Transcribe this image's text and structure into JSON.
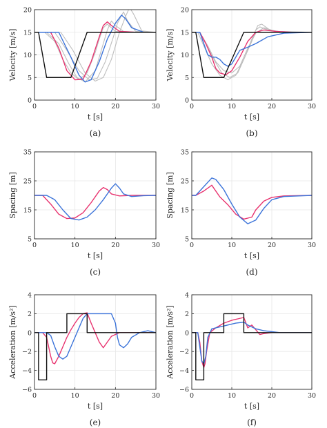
{
  "colors": {
    "reference": "#111111",
    "magenta": "#e8336f",
    "blue": "#3b73d9",
    "gray": "#bdbdbd",
    "grid": "#e6e6e6",
    "axis": "#262626"
  },
  "chart_data": [
    {
      "id": "a",
      "type": "line",
      "caption": "(a)",
      "xlabel": "t [s]",
      "ylabel": "Velocity [m/s]",
      "xlim": [
        0,
        30
      ],
      "ylim": [
        0,
        20
      ],
      "xticks": [
        "0",
        "10",
        "20",
        "30"
      ],
      "yticks": [
        "0",
        "5",
        "10",
        "15",
        "20"
      ],
      "grid": true,
      "series": [
        {
          "style": "gray",
          "x": [
            0,
            2.5,
            5,
            7,
            9,
            11,
            13,
            15,
            16,
            17,
            18,
            20,
            25,
            30
          ],
          "y": [
            15,
            15,
            13,
            9,
            6,
            4.5,
            6,
            10.5,
            13.5,
            16,
            16.8,
            15.2,
            15,
            15
          ]
        },
        {
          "style": "gray",
          "x": [
            0,
            3,
            6,
            8.5,
            10.5,
            12.5,
            15,
            17,
            18,
            19,
            20,
            22,
            26,
            30
          ],
          "y": [
            15,
            15,
            12.5,
            8,
            5,
            4,
            6.5,
            12.5,
            15.5,
            17.5,
            16.5,
            15.2,
            15,
            15
          ]
        },
        {
          "style": "gray",
          "x": [
            0,
            5,
            8,
            11,
            13.5,
            15.5,
            17.5,
            19.5,
            20.5,
            22,
            23,
            25,
            30
          ],
          "y": [
            15,
            15,
            11,
            6.5,
            4.5,
            4.8,
            8.5,
            14,
            17,
            19.5,
            17.5,
            15.2,
            15
          ]
        },
        {
          "style": "gray",
          "x": [
            0,
            6.5,
            9.5,
            12.5,
            15,
            17,
            19,
            21,
            22.5,
            23.5,
            24.5,
            26.5,
            30
          ],
          "y": [
            15,
            15,
            11,
            6,
            4.2,
            5,
            9,
            15,
            18.5,
            20.5,
            19,
            15.3,
            15
          ]
        },
        {
          "style": "magenta",
          "x": [
            0,
            4,
            6,
            8,
            10,
            12,
            14,
            16,
            17,
            18,
            19,
            21,
            25,
            30
          ],
          "y": [
            15,
            15,
            11.5,
            6.5,
            4.5,
            4.6,
            8.5,
            14,
            16.5,
            17.3,
            16.5,
            15.2,
            15,
            15
          ]
        },
        {
          "style": "blue",
          "x": [
            0,
            6,
            9,
            11,
            12.5,
            14,
            16,
            18,
            20,
            21.5,
            22.5,
            24,
            27,
            30
          ],
          "y": [
            15,
            15,
            9.5,
            5.5,
            4,
            4.5,
            8.5,
            13.5,
            17,
            18.8,
            18,
            16,
            15,
            15
          ]
        },
        {
          "style": "reference",
          "x": [
            0,
            1,
            3,
            9,
            13,
            30
          ],
          "y": [
            15,
            15,
            5,
            5,
            15,
            15
          ]
        }
      ]
    },
    {
      "id": "b",
      "type": "line",
      "caption": "(b)",
      "xlabel": "t [s]",
      "ylabel": "Velocity [m/s]",
      "xlim": [
        0,
        30
      ],
      "ylim": [
        0,
        20
      ],
      "xticks": [
        "0",
        "10",
        "20",
        "30"
      ],
      "yticks": [
        "0",
        "5",
        "10",
        "15",
        "20"
      ],
      "grid": true,
      "series": [
        {
          "style": "gray",
          "x": [
            0,
            1.5,
            3,
            5,
            7,
            9,
            11,
            13,
            15,
            16,
            17,
            19,
            22,
            30
          ],
          "y": [
            15,
            15,
            12,
            8,
            5.5,
            4.5,
            5.5,
            9,
            13,
            15.5,
            16.2,
            15.5,
            15,
            15
          ]
        },
        {
          "style": "gray",
          "x": [
            0,
            2,
            3.5,
            5.5,
            7.5,
            9.5,
            11.5,
            13.5,
            15,
            16.5,
            17.5,
            19.5,
            23,
            30
          ],
          "y": [
            15,
            15,
            12.5,
            9,
            6,
            5,
            6,
            10,
            13.5,
            16.5,
            16.8,
            15.5,
            15,
            15
          ]
        },
        {
          "style": "gray",
          "x": [
            0,
            2,
            4,
            6,
            8,
            10,
            12,
            14,
            16,
            18,
            21,
            30
          ],
          "y": [
            15,
            15,
            12,
            8.5,
            6.5,
            6,
            7.5,
            11.5,
            14.8,
            16,
            15.2,
            15
          ]
        },
        {
          "style": "magenta",
          "x": [
            0,
            2,
            3.5,
            5,
            6,
            7,
            8.5,
            10,
            12,
            14,
            16,
            18,
            21,
            25,
            30
          ],
          "y": [
            15,
            15,
            12.5,
            9.5,
            7,
            6,
            5.6,
            6.5,
            9.5,
            13,
            15,
            15.5,
            15.2,
            15,
            15
          ]
        },
        {
          "style": "blue",
          "x": [
            0,
            2,
            3,
            4,
            5,
            6,
            7,
            8,
            9,
            10,
            11,
            12,
            14,
            16,
            19,
            23,
            30
          ],
          "y": [
            15,
            15,
            12.5,
            10,
            9.5,
            9.5,
            9,
            8,
            7.5,
            8,
            9.5,
            11,
            11.7,
            12.5,
            14,
            14.8,
            15
          ]
        },
        {
          "style": "reference",
          "x": [
            0,
            1,
            3,
            8,
            13,
            30
          ],
          "y": [
            15,
            15,
            5,
            5,
            15,
            15
          ]
        }
      ]
    },
    {
      "id": "c",
      "type": "line",
      "caption": "(c)",
      "xlabel": "t [s]",
      "ylabel": "Spacing [m]",
      "xlim": [
        0,
        30
      ],
      "ylim": [
        5,
        35
      ],
      "xticks": [
        "0",
        "10",
        "20",
        "30"
      ],
      "yticks": [
        "5",
        "15",
        "25",
        "35"
      ],
      "grid": true,
      "series": [
        {
          "style": "magenta",
          "x": [
            0,
            2,
            4,
            6,
            8,
            10,
            12,
            14,
            16,
            17,
            18,
            19,
            21,
            24,
            30
          ],
          "y": [
            20,
            20,
            17,
            13.5,
            12,
            12.2,
            14,
            17.5,
            21.5,
            22.7,
            22,
            20.5,
            19.8,
            20,
            20
          ]
        },
        {
          "style": "blue",
          "x": [
            0,
            3,
            5,
            7,
            9,
            11,
            13,
            15,
            17,
            19,
            20,
            21,
            22,
            24,
            27,
            30
          ],
          "y": [
            20,
            20,
            18.5,
            15,
            12,
            11.5,
            12.5,
            15,
            18.5,
            22.5,
            24,
            22.5,
            20.5,
            19.6,
            19.9,
            20
          ]
        }
      ]
    },
    {
      "id": "d",
      "type": "line",
      "caption": "(d)",
      "xlabel": "t [s]",
      "ylabel": "Spacing [m]",
      "xlim": [
        0,
        30
      ],
      "ylim": [
        5,
        35
      ],
      "xticks": [
        "0",
        "10",
        "20",
        "30"
      ],
      "yticks": [
        "5",
        "15",
        "25",
        "35"
      ],
      "grid": true,
      "series": [
        {
          "style": "magenta",
          "x": [
            0,
            1,
            3,
            5,
            7,
            9,
            11,
            13,
            15,
            16,
            18,
            20,
            23,
            30
          ],
          "y": [
            20,
            20,
            21.5,
            23.5,
            19.5,
            16.8,
            13.5,
            11.8,
            12.5,
            15,
            18,
            19.3,
            19.8,
            20
          ]
        },
        {
          "style": "blue",
          "x": [
            0,
            1,
            3,
            5,
            6,
            8,
            10,
            12,
            14,
            16,
            18,
            20,
            23,
            30
          ],
          "y": [
            20,
            20,
            23,
            26,
            25.5,
            22,
            17,
            12.5,
            10.2,
            11.5,
            15.5,
            18.5,
            19.6,
            20
          ]
        }
      ]
    },
    {
      "id": "e",
      "type": "line",
      "caption": "(e)",
      "xlabel": "t [s]",
      "ylabel": "Acceleration [m/s²]",
      "xlim": [
        0,
        30
      ],
      "ylim": [
        -6,
        4
      ],
      "xticks": [
        "0",
        "10",
        "20",
        "30"
      ],
      "yticks": [
        "-6",
        "-4",
        "-2",
        "0",
        "2",
        "4"
      ],
      "grid": true,
      "series": [
        {
          "style": "magenta",
          "x": [
            0,
            2,
            3,
            4,
            4.5,
            5,
            6,
            7,
            8,
            9,
            10,
            11,
            12,
            13,
            14,
            15,
            16,
            17,
            18,
            19,
            20,
            21,
            23,
            30
          ],
          "y": [
            0,
            0,
            -0.5,
            -2.5,
            -3.2,
            -3.3,
            -2.5,
            -1.5,
            -0.5,
            0.3,
            1,
            1.6,
            2,
            2.1,
            1,
            0,
            -1,
            -1.6,
            -1,
            -0.4,
            -0.2,
            0,
            0,
            0
          ]
        },
        {
          "style": "blue",
          "x": [
            0,
            3,
            4,
            5,
            6,
            7,
            8,
            9,
            10,
            11,
            12,
            13,
            19,
            20,
            20.5,
            21,
            22,
            23,
            24,
            26,
            28,
            30
          ],
          "y": [
            0,
            0,
            -0.3,
            -1.5,
            -2.5,
            -2.8,
            -2.5,
            -1.5,
            -0.5,
            0.5,
            1.5,
            2,
            2,
            1,
            -0.5,
            -1.3,
            -1.6,
            -1.2,
            -0.5,
            0,
            0.2,
            0
          ]
        },
        {
          "style": "reference",
          "x": [
            0,
            1,
            1,
            3,
            3,
            8,
            8,
            13,
            13,
            30
          ],
          "y": [
            0,
            0,
            -5,
            -5,
            0,
            0,
            2,
            2,
            0,
            0
          ]
        }
      ]
    },
    {
      "id": "f",
      "type": "line",
      "caption": "(f)",
      "xlabel": "t [s]",
      "ylabel": "Acceleration [m/s²]",
      "xlim": [
        0,
        30
      ],
      "ylim": [
        -6,
        4
      ],
      "xticks": [
        "0",
        "10",
        "20",
        "30"
      ],
      "yticks": [
        "-6",
        "-4",
        "-2",
        "0",
        "2",
        "4"
      ],
      "grid": true,
      "series": [
        {
          "style": "magenta",
          "x": [
            0,
            1.5,
            2,
            2.5,
            3,
            3.3,
            3.7,
            4.5,
            6,
            8,
            10,
            12,
            13,
            14,
            15,
            16,
            17,
            18,
            20,
            25,
            30
          ],
          "y": [
            0,
            0,
            -1,
            -3,
            -3.7,
            -3.3,
            -2,
            0,
            0.5,
            1,
            1.3,
            1.5,
            1.6,
            0.5,
            0.8,
            0.3,
            -0.2,
            -0.1,
            0,
            0,
            0
          ]
        },
        {
          "style": "blue",
          "x": [
            0,
            1.5,
            2,
            2.5,
            3,
            3.5,
            4,
            5,
            7,
            9,
            11,
            13,
            14,
            15,
            16,
            17,
            18,
            20,
            22,
            25,
            30
          ],
          "y": [
            0,
            0,
            -1.5,
            -3,
            -3.3,
            -2.5,
            -0.5,
            0.4,
            0.6,
            0.8,
            1,
            1.1,
            0.8,
            0.6,
            0.4,
            0.3,
            0.2,
            0.1,
            0,
            0,
            0
          ]
        },
        {
          "style": "reference",
          "x": [
            0,
            1,
            1,
            3,
            3,
            8,
            8,
            13,
            13,
            30
          ],
          "y": [
            0,
            0,
            -5,
            -5,
            0,
            0,
            2,
            2,
            0,
            0
          ]
        }
      ]
    }
  ]
}
